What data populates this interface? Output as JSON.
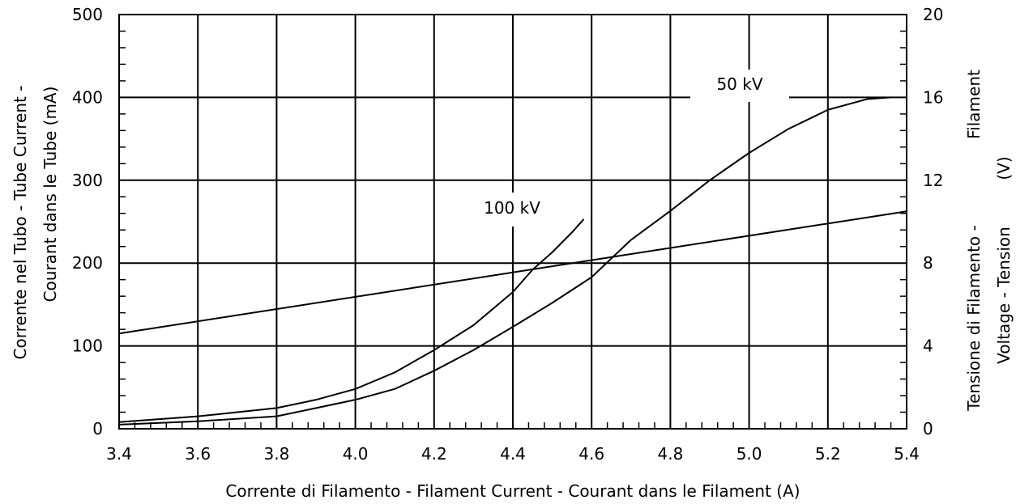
{
  "chart_data": {
    "type": "line",
    "xlabel": "Corrente di Filamento - Filament Current - Courant dans le Filament  (A)",
    "ylabel_left": [
      "Corrente nel Tubo - Tube Current -",
      "Courant dans le Tube   (mA)"
    ],
    "ylabel_right": [
      "Filament",
      "Tensione di Filamento -",
      "Voltage - Tension",
      "(V)"
    ],
    "xlim": [
      3.4,
      5.4
    ],
    "ylim_left": [
      0,
      500
    ],
    "ylim_right": [
      0,
      20
    ],
    "x_ticks": [
      "3.4",
      "3.6",
      "3.8",
      "4.0",
      "4.2",
      "4.4",
      "4.6",
      "4.8",
      "5.0",
      "5.2",
      "5.4"
    ],
    "y_ticks_left": [
      "0",
      "100",
      "200",
      "300",
      "400",
      "500"
    ],
    "y_ticks_right": [
      "0",
      "4",
      "8",
      "12",
      "16",
      "20"
    ],
    "grid": true,
    "series": [
      {
        "name": "100 kV",
        "axis": "left",
        "x": [
          3.4,
          3.6,
          3.8,
          3.9,
          4.0,
          4.1,
          4.2,
          4.3,
          4.4,
          4.45,
          4.5,
          4.55,
          4.58
        ],
        "y": [
          8,
          15,
          25,
          35,
          48,
          68,
          95,
          125,
          165,
          192,
          213,
          237,
          253
        ]
      },
      {
        "name": "50 kV",
        "axis": "left",
        "x": [
          3.4,
          3.6,
          3.8,
          4.0,
          4.1,
          4.2,
          4.3,
          4.4,
          4.5,
          4.6,
          4.7,
          4.8,
          4.9,
          5.0,
          5.1,
          5.2,
          5.3,
          5.36
        ],
        "y": [
          5,
          9,
          15,
          35,
          48,
          70,
          95,
          123,
          152,
          183,
          228,
          263,
          300,
          333,
          362,
          385,
          398,
          400
        ]
      },
      {
        "name": "",
        "axis": "right",
        "x": [
          3.4,
          5.4
        ],
        "y": [
          4.6,
          10.5
        ]
      }
    ],
    "annotations": [
      {
        "text": "100 kV",
        "series": 0
      },
      {
        "text": "50 kV",
        "series": 1
      }
    ]
  }
}
